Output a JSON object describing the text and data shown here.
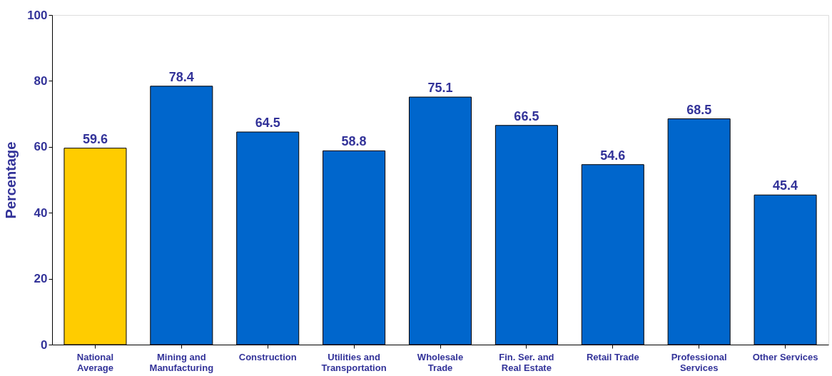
{
  "chart_data": {
    "type": "bar",
    "ylabel": "Percentage",
    "categories": [
      "National\nAverage",
      "Mining and\nManufacturing",
      "Construction",
      "Utilities and\nTransportation",
      "Wholesale\nTrade",
      "Fin. Ser. and\nReal Estate",
      "Retail Trade",
      "Professional\nServices",
      "Other Services"
    ],
    "values": [
      59.6,
      78.4,
      64.5,
      58.8,
      75.1,
      66.5,
      54.6,
      68.5,
      45.4
    ],
    "colors": [
      "#ffcc00",
      "#0066cc",
      "#0066cc",
      "#0066cc",
      "#0066cc",
      "#0066cc",
      "#0066cc",
      "#0066cc",
      "#0066cc"
    ],
    "ylim": [
      0,
      100
    ],
    "yticks": [
      0,
      20,
      40,
      60,
      80,
      100
    ],
    "data_labels": true,
    "grid": false
  }
}
